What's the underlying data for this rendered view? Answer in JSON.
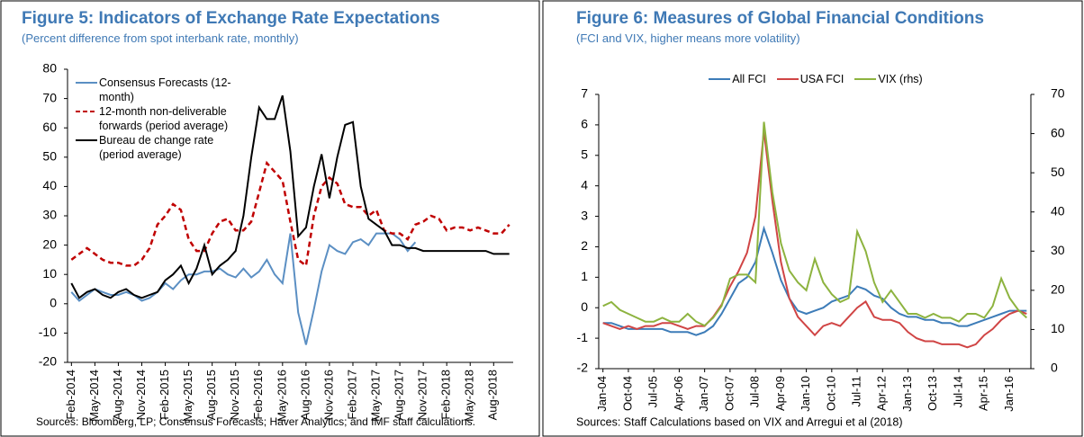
{
  "chart_data": [
    {
      "type": "line",
      "title": "Figure 5: Indicators of Exchange Rate Expectations",
      "subtitle": "(Percent difference from spot interbank rate, monthly)",
      "source": "Sources: Bloomberg,  LP; Consensus Forecasts; Haver Analytics; and IMF staff calculations.",
      "categories": [
        "Feb-2014",
        null,
        null,
        "May-2014",
        null,
        null,
        "Aug-2014",
        null,
        null,
        "Nov-2014",
        null,
        null,
        "Feb-2015",
        null,
        null,
        "May-2015",
        null,
        null,
        "Aug-2015",
        null,
        null,
        "Nov-2015",
        null,
        null,
        "Feb-2016",
        null,
        null,
        "May-2016",
        null,
        null,
        "Aug-2016",
        null,
        null,
        "Nov-2016",
        null,
        null,
        "Feb-2017",
        null,
        null,
        "May-2017",
        null,
        null,
        "Aug-2017",
        null,
        null,
        "Nov-2017",
        null,
        null,
        "Feb-2018",
        null,
        null,
        "May-2018",
        null,
        null,
        "Aug-2018",
        null,
        null
      ],
      "series": [
        {
          "name": "Consensus Forecasts (12-month)",
          "color": "#5b8fc3",
          "dash": false,
          "values": [
            4,
            1,
            3,
            5,
            4,
            3,
            3,
            4,
            3,
            1,
            2,
            4,
            7,
            5,
            8,
            10,
            10,
            11,
            11,
            12,
            10,
            9,
            12,
            9,
            11,
            15,
            10,
            7,
            24,
            -3,
            -14,
            -2,
            11,
            20,
            18,
            17,
            21,
            22,
            20,
            24,
            24,
            24,
            22,
            18,
            21,
            null,
            null,
            null,
            null,
            null,
            null,
            null,
            null,
            null,
            null,
            null,
            null
          ]
        },
        {
          "name": "12-month non-deliverable forwards (period average)",
          "color": "#c00000",
          "dash": true,
          "values": [
            15,
            17,
            19,
            17,
            15,
            14,
            14,
            13,
            13,
            15,
            19,
            27,
            30,
            34,
            32,
            22,
            18,
            18,
            24,
            28,
            29,
            25,
            25,
            28,
            38,
            48,
            45,
            42,
            28,
            15,
            13,
            30,
            40,
            43,
            41,
            34,
            33,
            33,
            30,
            32,
            25,
            24,
            24,
            22,
            27,
            28,
            30,
            29,
            25,
            26,
            26,
            25,
            26,
            25,
            24,
            24,
            27
          ]
        },
        {
          "name": "Bureau de change rate (period average)",
          "color": "#000000",
          "dash": false,
          "values": [
            7,
            2,
            4,
            5,
            3,
            2,
            4,
            5,
            3,
            2,
            3,
            4,
            8,
            10,
            13,
            7,
            12,
            20,
            10,
            13,
            15,
            18,
            30,
            50,
            67,
            63,
            63,
            71,
            52,
            23,
            26,
            40,
            51,
            36,
            50,
            61,
            62,
            40,
            29,
            27,
            25,
            20,
            20,
            19,
            19,
            18,
            18,
            18,
            18,
            18,
            18,
            18,
            18,
            18,
            17,
            17,
            17
          ]
        }
      ],
      "ylim": [
        -20,
        80
      ],
      "yticks": [
        -20,
        -10,
        0,
        10,
        20,
        30,
        40,
        50,
        60,
        70,
        80
      ],
      "legend": "upper left"
    },
    {
      "type": "line",
      "title": "Figure 6: Measures of Global Financial Conditions",
      "subtitle": "(FCI and VIX, higher means more volatility)",
      "source": "Sources: Staff Calculations based on VIX and Arregui et al (2018)",
      "categories": [
        "Jan-04",
        null,
        null,
        "Oct-04",
        null,
        null,
        "Jul-05",
        null,
        null,
        "Apr-06",
        null,
        null,
        "Jan-07",
        null,
        null,
        "Oct-07",
        null,
        null,
        "Jul-08",
        null,
        null,
        "Apr-09",
        null,
        null,
        "Jan-10",
        null,
        null,
        "Oct-10",
        null,
        null,
        "Jul-11",
        null,
        null,
        "Apr-12",
        null,
        null,
        "Jan-13",
        null,
        null,
        "Oct-13",
        null,
        null,
        "Jul-14",
        null,
        null,
        "Apr-15",
        null,
        null,
        "Jan-16",
        null,
        null
      ],
      "series": [
        {
          "name": "All FCI",
          "color": "#3d7cb8",
          "axis": "y",
          "values": [
            -0.5,
            -0.5,
            -0.6,
            -0.7,
            -0.7,
            -0.7,
            -0.7,
            -0.7,
            -0.8,
            -0.8,
            -0.8,
            -0.9,
            -0.8,
            -0.6,
            -0.2,
            0.3,
            0.8,
            1.0,
            1.5,
            2.6,
            1.8,
            0.9,
            0.3,
            -0.1,
            -0.2,
            -0.1,
            0.0,
            0.2,
            0.3,
            0.4,
            0.7,
            0.6,
            0.4,
            0.3,
            0.0,
            -0.2,
            -0.3,
            -0.3,
            -0.4,
            -0.4,
            -0.5,
            -0.5,
            -0.6,
            -0.6,
            -0.5,
            -0.4,
            -0.3,
            -0.2,
            -0.1,
            -0.1,
            -0.1
          ]
        },
        {
          "name": "USA FCI",
          "color": "#d04545",
          "axis": "y",
          "values": [
            -0.5,
            -0.6,
            -0.7,
            -0.6,
            -0.7,
            -0.6,
            -0.6,
            -0.5,
            -0.5,
            -0.6,
            -0.7,
            -0.6,
            -0.6,
            -0.3,
            0.1,
            0.7,
            1.2,
            1.8,
            3.0,
            5.8,
            3.5,
            1.5,
            0.3,
            -0.3,
            -0.6,
            -0.9,
            -0.6,
            -0.5,
            -0.6,
            -0.3,
            0.0,
            0.2,
            -0.3,
            -0.4,
            -0.4,
            -0.5,
            -0.8,
            -1.0,
            -1.1,
            -1.1,
            -1.2,
            -1.2,
            -1.2,
            -1.3,
            -1.2,
            -0.9,
            -0.7,
            -0.4,
            -0.2,
            -0.1,
            -0.2
          ]
        },
        {
          "name": "VIX (rhs)",
          "color": "#8db33f",
          "axis": "y2",
          "values": [
            16,
            17,
            15,
            14,
            13,
            12,
            12,
            13,
            12,
            12,
            14,
            12,
            11,
            13,
            16,
            23,
            24,
            24,
            22,
            63,
            45,
            32,
            25,
            22,
            20,
            28,
            22,
            19,
            17,
            18,
            35,
            30,
            22,
            17,
            20,
            17,
            14,
            14,
            13,
            14,
            13,
            13,
            12,
            14,
            14,
            13,
            16,
            23,
            18,
            15,
            13
          ]
        }
      ],
      "ylim": [
        -2,
        7
      ],
      "yticks": [
        -2,
        -1,
        0,
        1,
        2,
        3,
        4,
        5,
        6,
        7
      ],
      "y2lim": [
        0,
        70
      ],
      "y2ticks": [
        0,
        10,
        20,
        30,
        40,
        50,
        60,
        70
      ],
      "legend": "upper center"
    }
  ]
}
